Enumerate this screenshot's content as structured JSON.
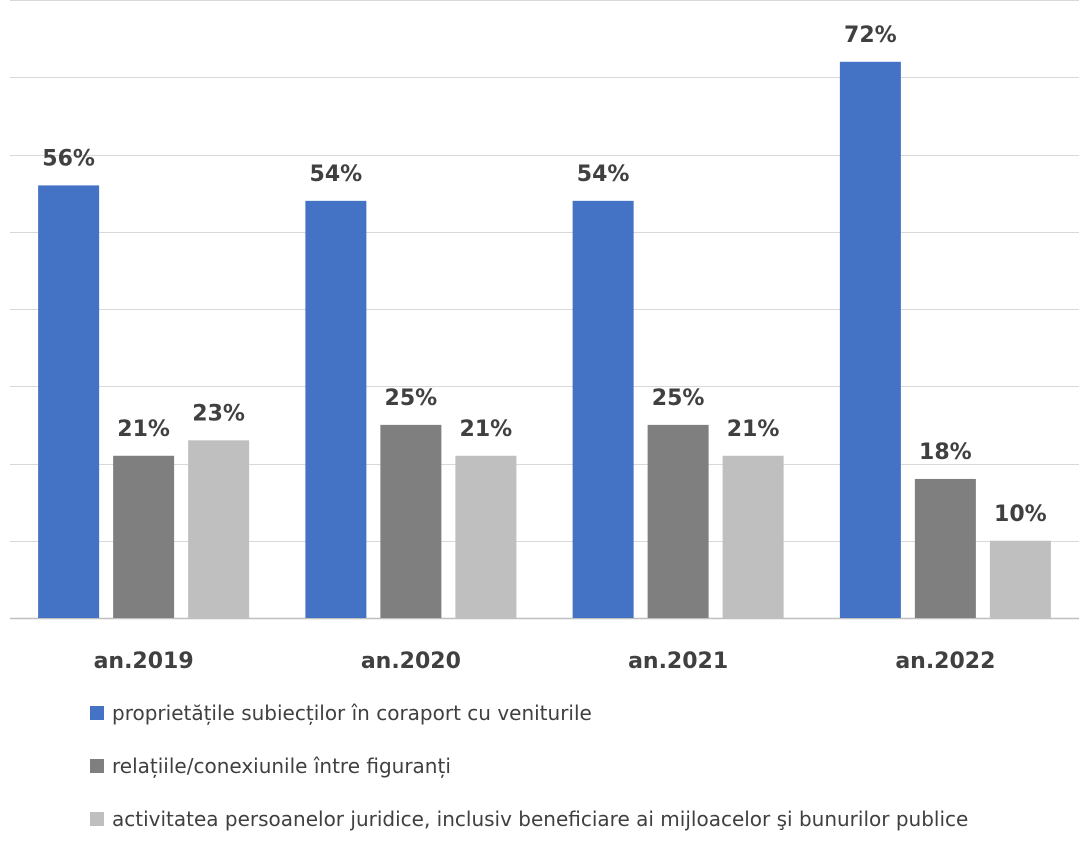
{
  "chart_data": {
    "type": "bar",
    "title": "",
    "xlabel": "",
    "ylabel": "",
    "ylim": [
      0,
      80
    ],
    "grid": true,
    "legend_position": "bottom",
    "categories": [
      "an.2019",
      "an.2020",
      "an.2021",
      "an.2022"
    ],
    "series": [
      {
        "name": "proprietățile subiecților în coraport cu veniturile",
        "color": "#4472C4",
        "values": [
          56,
          54,
          54,
          72
        ],
        "labels": [
          "56%",
          "54%",
          "54%",
          "72%"
        ]
      },
      {
        "name": "relațiile/conexiunile între figuranți",
        "color": "#7F7F7F",
        "values": [
          21,
          25,
          25,
          18
        ],
        "labels": [
          "21%",
          "25%",
          "25%",
          "18%"
        ]
      },
      {
        "name": "activitatea persoanelor juridice, inclusiv beneficiare ai mijloacelor şi bunurilor publice",
        "color": "#BFBFBF",
        "values": [
          23,
          21,
          21,
          10
        ],
        "labels": [
          "23%",
          "21%",
          "21%",
          "10%"
        ]
      }
    ]
  },
  "legend": {
    "items": [
      {
        "label": "proprietățile subiecților în coraport cu veniturile",
        "color": "#4472C4"
      },
      {
        "label": "relațiile/conexiunile între figuranți",
        "color": "#7F7F7F"
      },
      {
        "label": "activitatea persoanelor juridice, inclusiv beneficiare ai mijloacelor şi bunurilor publice",
        "color": "#BFBFBF"
      }
    ]
  }
}
